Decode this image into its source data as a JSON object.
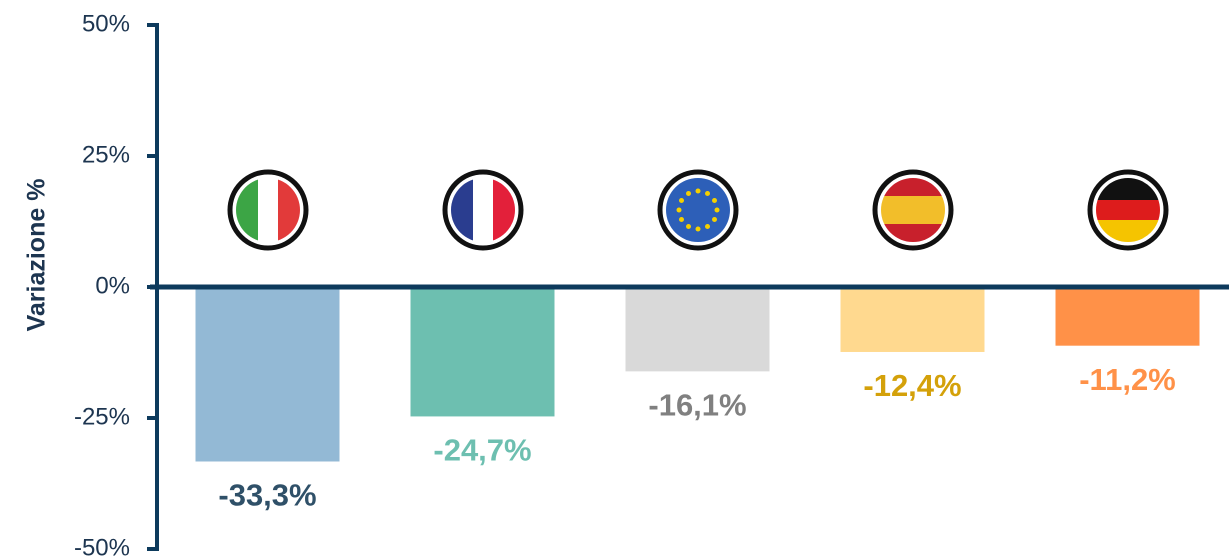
{
  "chart_data": {
    "type": "bar",
    "ylabel": "Variazione %",
    "categories": [
      null,
      null,
      null,
      null,
      null
    ],
    "values": [
      -33.3,
      -24.7,
      -16.1,
      -12.4,
      -11.2
    ],
    "value_labels": [
      "-33,3%",
      "-24,7%",
      "-16,1%",
      "-12,4%",
      "-11,2%"
    ],
    "colors": [
      "#93b9d5",
      "#6dbfb0",
      "#d9d9d9",
      "#ffd98f",
      "#ff9148"
    ],
    "label_colors": [
      "#2f5068",
      "#6dbfb0",
      "#808080",
      "#d4a10a",
      "#ff9148"
    ],
    "ylim": [
      -50,
      50
    ],
    "yticks": [
      {
        "value": -50,
        "label": "-50%"
      },
      {
        "value": -25,
        "label": "-25%"
      },
      {
        "value": 0,
        "label": "0%"
      },
      {
        "value": 25,
        "label": "25%"
      },
      {
        "value": 50,
        "label": "50%"
      }
    ],
    "grid": false
  }
}
